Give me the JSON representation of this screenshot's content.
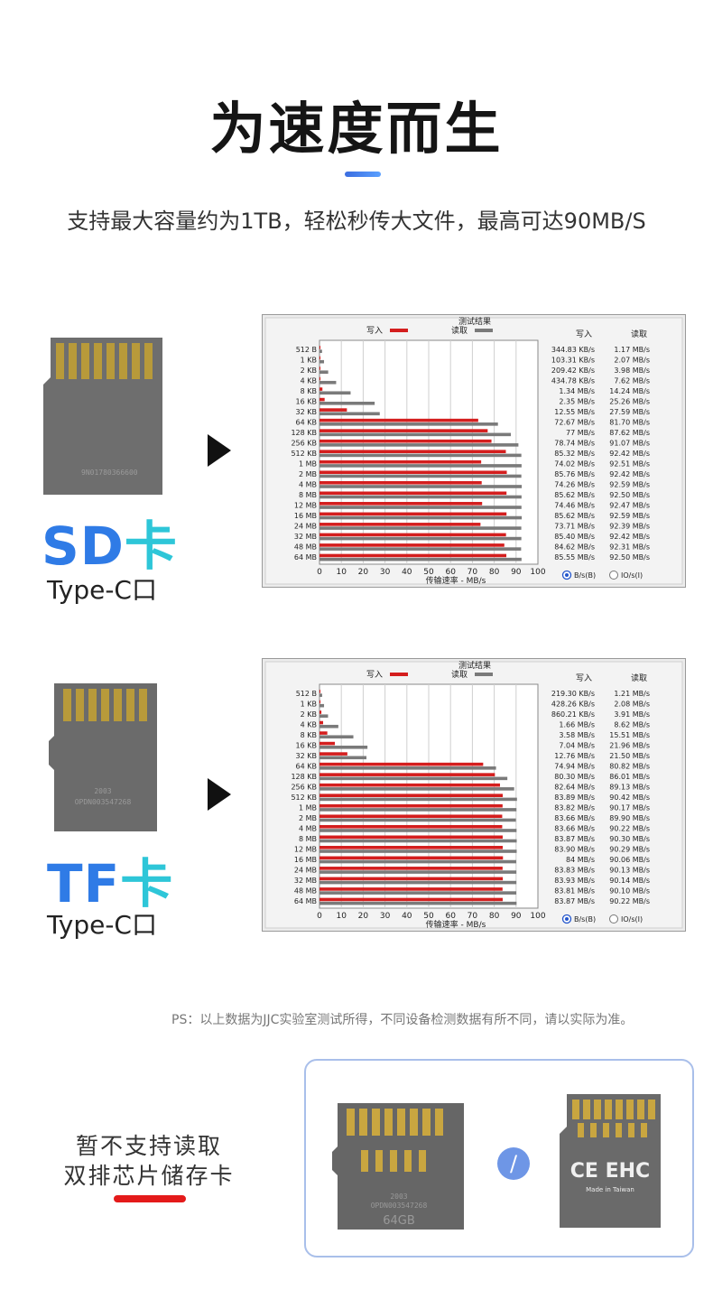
{
  "header": {
    "title": "为速度而生",
    "subtitle": "支持最大容量约为1TB，轻松秒传大文件，最高可达90MB/S"
  },
  "colors": {
    "write": "#d41e1e",
    "read": "#7a7a7a",
    "accent": "#3b82f6"
  },
  "cards": [
    {
      "label_main": "SD",
      "label_suffix": "卡",
      "port": "Type-C口",
      "serial": "9N01780366600",
      "arrow_icon": "play-right-icon"
    },
    {
      "label_main": "TF",
      "label_suffix": "卡",
      "port": "Type-C口",
      "serial_top": "2003",
      "serial": "OPDN003547268",
      "arrow_icon": "play-right-icon"
    }
  ],
  "chart_data": [
    {
      "type": "bar",
      "title": "测试结果",
      "legend": [
        "写入",
        "读取"
      ],
      "table_headers": [
        "写入",
        "读取"
      ],
      "xlabel": "传输速率 - MB/s",
      "xlim": [
        0,
        100
      ],
      "xticks": [
        0,
        10,
        20,
        30,
        40,
        50,
        60,
        70,
        80,
        90,
        100
      ],
      "radio_options": [
        "B/s(B)",
        "IO/s(I)"
      ],
      "categories": [
        "512 B",
        "1 KB",
        "2 KB",
        "4 KB",
        "8 KB",
        "16 KB",
        "32 KB",
        "64 KB",
        "128 KB",
        "256 KB",
        "512 KB",
        "1 MB",
        "2 MB",
        "4 MB",
        "8 MB",
        "12 MB",
        "16 MB",
        "24 MB",
        "32 MB",
        "48 MB",
        "64 MB"
      ],
      "series": [
        {
          "name": "写入",
          "values": [
            0.34,
            0.1,
            0.21,
            0.43,
            1.34,
            2.35,
            12.55,
            72.67,
            77,
            78.74,
            85.32,
            74.02,
            85.76,
            74.26,
            85.62,
            74.46,
            85.62,
            73.71,
            85.4,
            84.62,
            85.55
          ]
        },
        {
          "name": "读取",
          "values": [
            1.17,
            2.07,
            3.98,
            7.62,
            14.24,
            25.26,
            27.59,
            81.7,
            87.62,
            91.07,
            92.42,
            92.51,
            92.42,
            92.59,
            92.5,
            92.47,
            92.59,
            92.39,
            92.42,
            92.31,
            92.5
          ]
        }
      ],
      "write_labels": [
        "344.83 KB/s",
        "103.31 KB/s",
        "209.42 KB/s",
        "434.78 KB/s",
        "1.34 MB/s",
        "2.35 MB/s",
        "12.55 MB/s",
        "72.67 MB/s",
        "77 MB/s",
        "78.74 MB/s",
        "85.32 MB/s",
        "74.02 MB/s",
        "85.76 MB/s",
        "74.26 MB/s",
        "85.62 MB/s",
        "74.46 MB/s",
        "85.62 MB/s",
        "73.71 MB/s",
        "85.40 MB/s",
        "84.62 MB/s",
        "85.55 MB/s"
      ],
      "read_labels": [
        "1.17 MB/s",
        "2.07 MB/s",
        "3.98 MB/s",
        "7.62 MB/s",
        "14.24 MB/s",
        "25.26 MB/s",
        "27.59 MB/s",
        "81.70 MB/s",
        "87.62 MB/s",
        "91.07 MB/s",
        "92.42 MB/s",
        "92.51 MB/s",
        "92.42 MB/s",
        "92.59 MB/s",
        "92.50 MB/s",
        "92.47 MB/s",
        "92.59 MB/s",
        "92.39 MB/s",
        "92.42 MB/s",
        "92.31 MB/s",
        "92.50 MB/s"
      ]
    },
    {
      "type": "bar",
      "title": "测试结果",
      "legend": [
        "写入",
        "读取"
      ],
      "table_headers": [
        "写入",
        "读取"
      ],
      "xlabel": "传输速率 - MB/s",
      "xlim": [
        0,
        100
      ],
      "xticks": [
        0,
        10,
        20,
        30,
        40,
        50,
        60,
        70,
        80,
        90,
        100
      ],
      "radio_options": [
        "B/s(B)",
        "IO/s(I)"
      ],
      "categories": [
        "512 B",
        "1 KB",
        "2 KB",
        "4 KB",
        "8 KB",
        "16 KB",
        "32 KB",
        "64 KB",
        "128 KB",
        "256 KB",
        "512 KB",
        "1 MB",
        "2 MB",
        "4 MB",
        "8 MB",
        "12 MB",
        "16 MB",
        "24 MB",
        "32 MB",
        "48 MB",
        "64 MB"
      ],
      "series": [
        {
          "name": "写入",
          "values": [
            0.21,
            0.43,
            0.86,
            1.66,
            3.58,
            7.04,
            12.76,
            74.94,
            80.3,
            82.64,
            83.89,
            83.82,
            83.66,
            83.66,
            83.87,
            83.9,
            84,
            83.83,
            83.93,
            83.81,
            83.87
          ]
        },
        {
          "name": "读取",
          "values": [
            1.21,
            2.08,
            3.91,
            8.62,
            15.51,
            21.96,
            21.5,
            80.82,
            86.01,
            89.13,
            90.42,
            90.17,
            89.9,
            90.22,
            90.3,
            90.29,
            90.06,
            90.13,
            90.14,
            90.1,
            90.22
          ]
        }
      ],
      "write_labels": [
        "219.30 KB/s",
        "428.26 KB/s",
        "860.21 KB/s",
        "1.66 MB/s",
        "3.58 MB/s",
        "7.04 MB/s",
        "12.76 MB/s",
        "74.94 MB/s",
        "80.30 MB/s",
        "82.64 MB/s",
        "83.89 MB/s",
        "83.82 MB/s",
        "83.66 MB/s",
        "83.66 MB/s",
        "83.87 MB/s",
        "83.90 MB/s",
        "84 MB/s",
        "83.83 MB/s",
        "83.93 MB/s",
        "83.81 MB/s",
        "83.87 MB/s"
      ],
      "read_labels": [
        "1.21 MB/s",
        "2.08 MB/s",
        "3.91 MB/s",
        "8.62 MB/s",
        "15.51 MB/s",
        "21.96 MB/s",
        "21.50 MB/s",
        "80.82 MB/s",
        "86.01 MB/s",
        "89.13 MB/s",
        "90.42 MB/s",
        "90.17 MB/s",
        "89.90 MB/s",
        "90.22 MB/s",
        "90.30 MB/s",
        "90.29 MB/s",
        "90.06 MB/s",
        "90.13 MB/s",
        "90.14 MB/s",
        "90.10 MB/s",
        "90.22 MB/s"
      ]
    }
  ],
  "note": "PS：以上数据为JJC实验室测试所得，不同设备检测数据有所不同，请以实际为准。",
  "warning": {
    "line1": "暂不支持读取",
    "line2": "双排芯片储存卡",
    "tf_card": {
      "serial_top": "2003",
      "serial": "OPDN003547268",
      "capacity": "64GB"
    },
    "separator": "/",
    "sd_card": {
      "mark": "CE EHC",
      "made_in": "Made in Taiwan"
    }
  }
}
